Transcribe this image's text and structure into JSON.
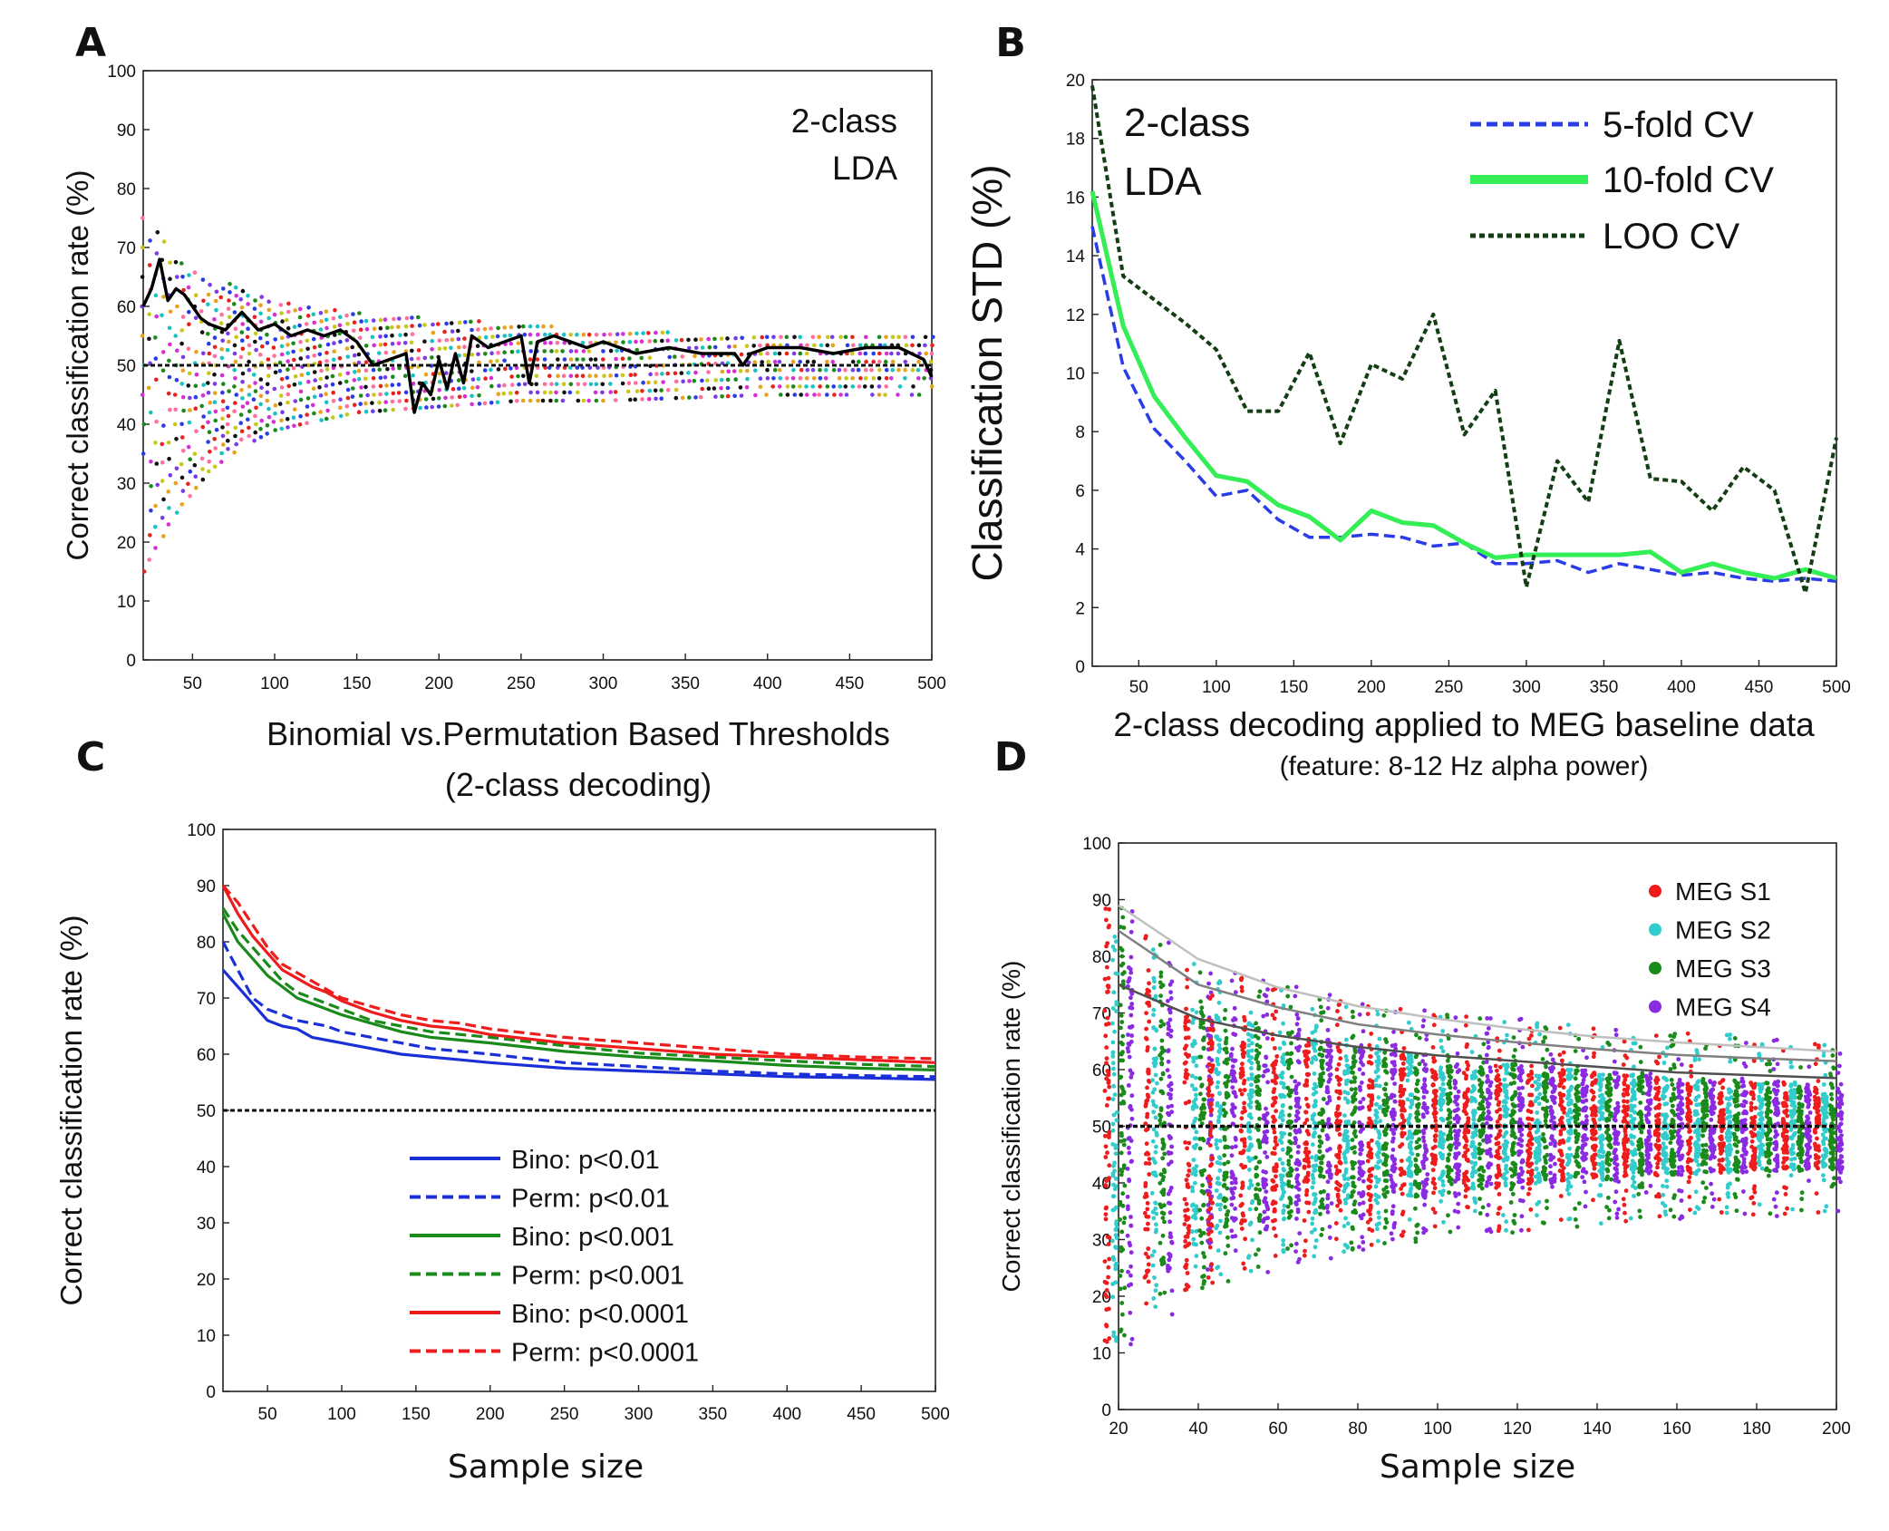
{
  "chart_data": [
    {
      "panel": "A",
      "type": "scatter",
      "ylabel": "Correct classification rate (%)",
      "annotation": [
        "2-class",
        "LDA"
      ],
      "xlim": [
        20,
        500
      ],
      "ylim": [
        0,
        100
      ],
      "xticks": [
        50,
        100,
        150,
        200,
        250,
        300,
        350,
        400,
        450,
        500
      ],
      "yticks": [
        0,
        10,
        20,
        30,
        40,
        50,
        60,
        70,
        80,
        90,
        100
      ],
      "chance_level": 50,
      "envelope": {
        "x": [
          20,
          30,
          40,
          60,
          80,
          100,
          150,
          200,
          250,
          300,
          400,
          500
        ],
        "upper": [
          75,
          72,
          68,
          65,
          63,
          61,
          59,
          58,
          57,
          56,
          55,
          55
        ],
        "lower": [
          15,
          20,
          25,
          32,
          36,
          39,
          42,
          43,
          44,
          44,
          45,
          45
        ]
      },
      "mean_line": {
        "x": [
          20,
          25,
          30,
          35,
          40,
          45,
          50,
          55,
          60,
          70,
          80,
          90,
          100,
          110,
          120,
          130,
          140,
          150,
          155,
          160,
          170,
          180,
          185,
          190,
          195,
          200,
          205,
          210,
          215,
          220,
          230,
          240,
          250,
          255,
          260,
          270,
          280,
          290,
          300,
          320,
          340,
          360,
          380,
          385,
          390,
          400,
          420,
          440,
          460,
          480,
          495,
          500
        ],
        "y": [
          60,
          63,
          68,
          61,
          63,
          62,
          60,
          58,
          57,
          56,
          59,
          56,
          57,
          55,
          56,
          55,
          56,
          54,
          52,
          50,
          51,
          52,
          42,
          47,
          45,
          51,
          46,
          52,
          47,
          55,
          53,
          54,
          55,
          47,
          54,
          55,
          54,
          53,
          54,
          52,
          53,
          52,
          52,
          50,
          52,
          53,
          53,
          52,
          53,
          53,
          51,
          48
        ]
      }
    },
    {
      "panel": "B",
      "type": "line",
      "ylabel": "Classification STD (%)",
      "xlabel": "2-class decoding applied to MEG baseline data",
      "subtitle": "(feature: 8-12 Hz alpha power)",
      "annotation": [
        "2-class",
        "LDA"
      ],
      "xlim": [
        20,
        500
      ],
      "ylim": [
        0,
        20
      ],
      "xticks": [
        50,
        100,
        150,
        200,
        250,
        300,
        350,
        400,
        450,
        500
      ],
      "yticks": [
        0,
        2,
        4,
        6,
        8,
        10,
        12,
        14,
        16,
        18,
        20
      ],
      "x": [
        20,
        40,
        60,
        80,
        100,
        120,
        140,
        160,
        180,
        200,
        220,
        240,
        260,
        280,
        300,
        320,
        340,
        360,
        380,
        400,
        420,
        440,
        460,
        480,
        500
      ],
      "series": [
        {
          "name": "5-fold CV",
          "color": "#2a3be8",
          "dash": "dashed",
          "values": [
            15.0,
            10.2,
            8.1,
            7.0,
            5.8,
            6.0,
            5.0,
            4.4,
            4.4,
            4.5,
            4.4,
            4.1,
            4.2,
            3.5,
            3.5,
            3.6,
            3.2,
            3.5,
            3.3,
            3.1,
            3.2,
            3.0,
            2.9,
            3.0,
            2.9
          ]
        },
        {
          "name": "10-fold CV",
          "color": "#33ee55",
          "dash": "solid",
          "values": [
            16.2,
            11.6,
            9.2,
            7.8,
            6.5,
            6.3,
            5.5,
            5.1,
            4.3,
            5.3,
            4.9,
            4.8,
            4.2,
            3.7,
            3.8,
            3.8,
            3.8,
            3.8,
            3.9,
            3.2,
            3.5,
            3.2,
            3.0,
            3.3,
            3.0
          ]
        },
        {
          "name": "LOO CV",
          "color": "#133d13",
          "dash": "dotted",
          "values": [
            19.8,
            13.3,
            12.5,
            11.7,
            10.8,
            8.7,
            8.7,
            10.7,
            7.6,
            10.3,
            9.8,
            12.0,
            7.9,
            9.4,
            2.7,
            7.0,
            5.6,
            11.1,
            6.4,
            6.3,
            5.3,
            6.8,
            6.0,
            2.5,
            7.8
          ]
        }
      ]
    },
    {
      "panel": "C",
      "type": "line",
      "title": [
        "Binomial vs.Permutation Based Thresholds",
        "(2-class decoding)"
      ],
      "ylabel": "Correct classification rate (%)",
      "xlabel": "Sample size",
      "xlim": [
        20,
        500
      ],
      "ylim": [
        0,
        100
      ],
      "xticks": [
        50,
        100,
        150,
        200,
        250,
        300,
        350,
        400,
        450,
        500
      ],
      "yticks": [
        0,
        10,
        20,
        30,
        40,
        50,
        60,
        70,
        80,
        90,
        100
      ],
      "chance_level": 50,
      "x": [
        20,
        30,
        40,
        50,
        60,
        70,
        80,
        90,
        100,
        120,
        140,
        160,
        180,
        200,
        250,
        300,
        350,
        400,
        450,
        500
      ],
      "series": [
        {
          "name": "Bino: p<0.01",
          "color": "#1a2fd6",
          "dash": "solid",
          "values": [
            75,
            72,
            69,
            66,
            65,
            64.5,
            63,
            62.5,
            62,
            61,
            60,
            59.5,
            59,
            58.5,
            57.5,
            57,
            56.5,
            56,
            55.8,
            55.5
          ]
        },
        {
          "name": "Perm: p<0.01",
          "color": "#1a2fd6",
          "dash": "dashed",
          "values": [
            80,
            75,
            70,
            68,
            67,
            66,
            65.5,
            65,
            64,
            63,
            62,
            61,
            60.5,
            60,
            58.5,
            57.8,
            57,
            56.5,
            56.2,
            56
          ]
        },
        {
          "name": "Bino: p<0.001",
          "color": "#1a8a1a",
          "dash": "solid",
          "values": [
            85,
            80,
            77,
            74,
            72,
            70,
            69,
            68,
            67,
            65.5,
            64,
            63,
            62.5,
            62,
            60.5,
            59.5,
            58.8,
            58,
            57.5,
            57.2
          ]
        },
        {
          "name": "Perm: p<0.001",
          "color": "#1a8a1a",
          "dash": "dashed",
          "values": [
            86,
            82,
            79,
            76,
            73,
            71,
            70,
            69,
            68,
            66,
            65,
            64,
            63.5,
            63,
            61.5,
            60.2,
            59.5,
            58.8,
            58.2,
            57.8
          ]
        },
        {
          "name": "Bino: p<0.0001",
          "color": "#ee1c1c",
          "dash": "solid",
          "values": [
            90,
            85,
            81,
            78,
            75,
            73.5,
            72,
            71,
            69.5,
            67.5,
            66,
            65,
            64.5,
            63.5,
            62,
            61,
            60,
            59.5,
            59,
            58.5
          ]
        },
        {
          "name": "Perm: p<0.0001",
          "color": "#ee1c1c",
          "dash": "dashed",
          "values": [
            90,
            87,
            83,
            79,
            76,
            74.5,
            73,
            71.5,
            70,
            68.5,
            67,
            66,
            65.5,
            64.5,
            63,
            62,
            61,
            60,
            59.5,
            59.2
          ]
        }
      ]
    },
    {
      "panel": "D",
      "type": "scatter",
      "ylabel": "Correct classification rate (%)",
      "xlabel": "Sample size",
      "xlim": [
        20,
        200
      ],
      "ylim": [
        0,
        100
      ],
      "xticks": [
        20,
        40,
        60,
        80,
        100,
        120,
        140,
        160,
        180,
        200
      ],
      "yticks": [
        0,
        10,
        20,
        30,
        40,
        50,
        60,
        70,
        80,
        90,
        100
      ],
      "chance_level": 50,
      "sample_sizes": [
        20,
        30,
        40,
        46,
        54,
        62,
        70,
        78,
        86,
        94,
        102,
        110,
        118,
        126,
        134,
        142,
        150,
        158,
        166,
        174,
        182,
        190,
        198
      ],
      "series": [
        {
          "name": "MEG S1",
          "color": "#ee1c1c"
        },
        {
          "name": "MEG S2",
          "color": "#33cccc"
        },
        {
          "name": "MEG S3",
          "color": "#1a8a1a"
        },
        {
          "name": "MEG S4",
          "color": "#8a2be2"
        }
      ],
      "threshold_curves": [
        {
          "color": "#505050",
          "x": [
            20,
            40,
            60,
            80,
            100,
            120,
            140,
            160,
            180,
            200
          ],
          "y": [
            75,
            69,
            66,
            64,
            62.5,
            61.5,
            60.5,
            59.5,
            59,
            58.5
          ]
        },
        {
          "color": "#808080",
          "x": [
            20,
            40,
            60,
            80,
            100,
            120,
            140,
            160,
            180,
            200
          ],
          "y": [
            84.5,
            75,
            71,
            68,
            66.2,
            64.8,
            63.6,
            62.6,
            62,
            61.5
          ]
        },
        {
          "color": "#c0c0c0",
          "x": [
            20,
            40,
            60,
            80,
            100,
            120,
            140,
            160,
            180,
            200
          ],
          "y": [
            89,
            79.5,
            74.5,
            71.2,
            69,
            67.2,
            65.8,
            64.8,
            64,
            63.2
          ]
        }
      ]
    }
  ],
  "panel_labels": [
    "A",
    "B",
    "C",
    "D"
  ]
}
